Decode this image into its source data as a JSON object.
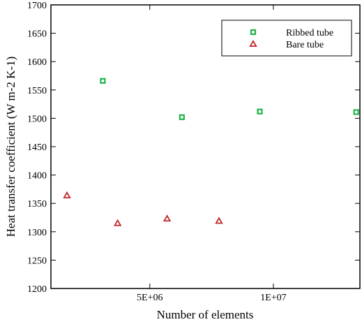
{
  "chart_data": {
    "type": "scatter",
    "title": "",
    "xlabel": "Number of elements",
    "ylabel": "Heat transfer coefficient (W m-2 K-1)",
    "xlim": [
      1000000,
      13500000
    ],
    "ylim": [
      1200,
      1700
    ],
    "x_ticks": [
      {
        "value": 5000000,
        "label": "5E+06"
      },
      {
        "value": 10000000,
        "label": "1E+07"
      }
    ],
    "y_ticks": [
      {
        "value": 1200,
        "label": "1200"
      },
      {
        "value": 1250,
        "label": "1250"
      },
      {
        "value": 1300,
        "label": "1300"
      },
      {
        "value": 1350,
        "label": "1350"
      },
      {
        "value": 1400,
        "label": "1400"
      },
      {
        "value": 1450,
        "label": "1450"
      },
      {
        "value": 1500,
        "label": "1500"
      },
      {
        "value": 1550,
        "label": "1550"
      },
      {
        "value": 1600,
        "label": "1600"
      },
      {
        "value": 1650,
        "label": "1650"
      },
      {
        "value": 1700,
        "label": "1700"
      }
    ],
    "grid": false,
    "legend_position": "top-right",
    "series": [
      {
        "name": "Ribbed tube",
        "marker": "square",
        "color": "#22b14c",
        "points": [
          {
            "x": 3100000,
            "y": 1566
          },
          {
            "x": 6300000,
            "y": 1502
          },
          {
            "x": 9450000,
            "y": 1512
          },
          {
            "x": 13350000,
            "y": 1511
          }
        ]
      },
      {
        "name": "Bare tube",
        "marker": "triangle",
        "color": "#c0282e",
        "points": [
          {
            "x": 1650000,
            "y": 1364
          },
          {
            "x": 3700000,
            "y": 1315
          },
          {
            "x": 5700000,
            "y": 1323
          },
          {
            "x": 7800000,
            "y": 1319
          }
        ]
      }
    ]
  }
}
